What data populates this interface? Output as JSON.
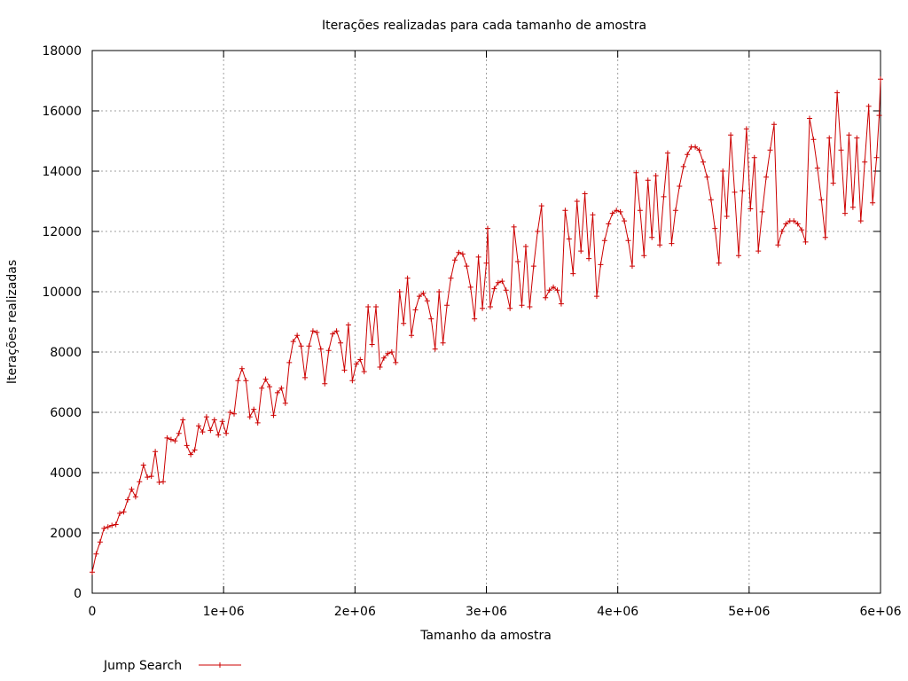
{
  "chart_data": {
    "type": "line",
    "title": "Iterações realizadas para cada tamanho de amostra",
    "xlabel": "Tamanho da amostra",
    "ylabel": "Iterações realizadas",
    "xlim": [
      0,
      6000000
    ],
    "ylim": [
      0,
      18000
    ],
    "xticks": [
      0,
      1000000,
      2000000,
      3000000,
      4000000,
      5000000,
      6000000
    ],
    "xtick_labels": [
      "0",
      "1e+06",
      "2e+06",
      "3e+06",
      "4e+06",
      "5e+06",
      "6e+06"
    ],
    "yticks": [
      0,
      2000,
      4000,
      6000,
      8000,
      10000,
      12000,
      14000,
      16000,
      18000
    ],
    "ytick_labels": [
      "0",
      "2000",
      "4000",
      "6000",
      "8000",
      "10000",
      "12000",
      "14000",
      "16000",
      "18000"
    ],
    "grid": true,
    "legend_position": "bottom-left",
    "series": [
      {
        "name": "Jump Search",
        "color": "#cc0000",
        "marker": "plus",
        "points": [
          [
            0,
            700
          ],
          [
            30000,
            1300
          ],
          [
            60000,
            1700
          ],
          [
            90000,
            2150
          ],
          [
            120000,
            2200
          ],
          [
            150000,
            2250
          ],
          [
            180000,
            2280
          ],
          [
            210000,
            2650
          ],
          [
            240000,
            2700
          ],
          [
            270000,
            3100
          ],
          [
            300000,
            3450
          ],
          [
            330000,
            3200
          ],
          [
            360000,
            3700
          ],
          [
            390000,
            4250
          ],
          [
            420000,
            3850
          ],
          [
            450000,
            3880
          ],
          [
            480000,
            4700
          ],
          [
            510000,
            3680
          ],
          [
            540000,
            3700
          ],
          [
            570000,
            5150
          ],
          [
            600000,
            5100
          ],
          [
            630000,
            5050
          ],
          [
            660000,
            5300
          ],
          [
            690000,
            5750
          ],
          [
            720000,
            4900
          ],
          [
            750000,
            4600
          ],
          [
            780000,
            4750
          ],
          [
            810000,
            5550
          ],
          [
            840000,
            5350
          ],
          [
            870000,
            5850
          ],
          [
            900000,
            5400
          ],
          [
            930000,
            5750
          ],
          [
            960000,
            5250
          ],
          [
            990000,
            5700
          ],
          [
            1020000,
            5300
          ],
          [
            1050000,
            6000
          ],
          [
            1080000,
            5950
          ],
          [
            1110000,
            7050
          ],
          [
            1140000,
            7450
          ],
          [
            1170000,
            7050
          ],
          [
            1200000,
            5850
          ],
          [
            1230000,
            6100
          ],
          [
            1260000,
            5650
          ],
          [
            1290000,
            6800
          ],
          [
            1320000,
            7100
          ],
          [
            1350000,
            6850
          ],
          [
            1380000,
            5900
          ],
          [
            1410000,
            6650
          ],
          [
            1440000,
            6800
          ],
          [
            1470000,
            6300
          ],
          [
            1500000,
            7650
          ],
          [
            1530000,
            8350
          ],
          [
            1560000,
            8550
          ],
          [
            1590000,
            8200
          ],
          [
            1620000,
            7150
          ],
          [
            1650000,
            8200
          ],
          [
            1680000,
            8700
          ],
          [
            1710000,
            8650
          ],
          [
            1740000,
            8100
          ],
          [
            1770000,
            6950
          ],
          [
            1800000,
            8050
          ],
          [
            1830000,
            8600
          ],
          [
            1860000,
            8700
          ],
          [
            1890000,
            8300
          ],
          [
            1920000,
            7400
          ],
          [
            1950000,
            8900
          ],
          [
            1980000,
            7050
          ],
          [
            2010000,
            7600
          ],
          [
            2040000,
            7750
          ],
          [
            2070000,
            7350
          ],
          [
            2100000,
            9500
          ],
          [
            2130000,
            8250
          ],
          [
            2160000,
            9500
          ],
          [
            2190000,
            7500
          ],
          [
            2220000,
            7800
          ],
          [
            2250000,
            7950
          ],
          [
            2280000,
            8000
          ],
          [
            2310000,
            7650
          ],
          [
            2340000,
            10000
          ],
          [
            2370000,
            8950
          ],
          [
            2400000,
            10450
          ],
          [
            2430000,
            8550
          ],
          [
            2460000,
            9400
          ],
          [
            2490000,
            9850
          ],
          [
            2520000,
            9950
          ],
          [
            2550000,
            9700
          ],
          [
            2580000,
            9100
          ],
          [
            2610000,
            8100
          ],
          [
            2640000,
            10000
          ],
          [
            2670000,
            8300
          ],
          [
            2700000,
            9550
          ],
          [
            2730000,
            10450
          ],
          [
            2760000,
            11050
          ],
          [
            2790000,
            11300
          ],
          [
            2820000,
            11250
          ],
          [
            2850000,
            10850
          ],
          [
            2880000,
            10150
          ],
          [
            2910000,
            9100
          ],
          [
            2940000,
            11150
          ],
          [
            2970000,
            9450
          ],
          [
            3000000,
            10950
          ],
          [
            3010000,
            12100
          ],
          [
            3030000,
            9500
          ],
          [
            3060000,
            10100
          ],
          [
            3090000,
            10300
          ],
          [
            3120000,
            10350
          ],
          [
            3150000,
            10050
          ],
          [
            3180000,
            9450
          ],
          [
            3210000,
            12150
          ],
          [
            3240000,
            11000
          ],
          [
            3270000,
            9550
          ],
          [
            3300000,
            11500
          ],
          [
            3330000,
            9500
          ],
          [
            3360000,
            10850
          ],
          [
            3390000,
            12000
          ],
          [
            3420000,
            12850
          ],
          [
            3450000,
            9800
          ],
          [
            3480000,
            10050
          ],
          [
            3510000,
            10150
          ],
          [
            3540000,
            10050
          ],
          [
            3570000,
            9600
          ],
          [
            3600000,
            12700
          ],
          [
            3630000,
            11750
          ],
          [
            3660000,
            10600
          ],
          [
            3690000,
            13000
          ],
          [
            3720000,
            11350
          ],
          [
            3750000,
            13250
          ],
          [
            3780000,
            11100
          ],
          [
            3810000,
            12550
          ],
          [
            3840000,
            9850
          ],
          [
            3870000,
            10900
          ],
          [
            3900000,
            11700
          ],
          [
            3930000,
            12250
          ],
          [
            3960000,
            12600
          ],
          [
            3990000,
            12700
          ],
          [
            4020000,
            12650
          ],
          [
            4050000,
            12350
          ],
          [
            4080000,
            11700
          ],
          [
            4110000,
            10850
          ],
          [
            4140000,
            13950
          ],
          [
            4170000,
            12700
          ],
          [
            4200000,
            11200
          ],
          [
            4230000,
            13700
          ],
          [
            4260000,
            11800
          ],
          [
            4290000,
            13850
          ],
          [
            4320000,
            11550
          ],
          [
            4350000,
            13150
          ],
          [
            4380000,
            14600
          ],
          [
            4410000,
            11600
          ],
          [
            4440000,
            12700
          ],
          [
            4470000,
            13500
          ],
          [
            4500000,
            14150
          ],
          [
            4530000,
            14550
          ],
          [
            4560000,
            14800
          ],
          [
            4590000,
            14800
          ],
          [
            4620000,
            14700
          ],
          [
            4650000,
            14300
          ],
          [
            4680000,
            13800
          ],
          [
            4710000,
            13050
          ],
          [
            4740000,
            12100
          ],
          [
            4770000,
            10950
          ],
          [
            4800000,
            14000
          ],
          [
            4830000,
            12500
          ],
          [
            4860000,
            15200
          ],
          [
            4890000,
            13300
          ],
          [
            4920000,
            11200
          ],
          [
            4950000,
            13350
          ],
          [
            4980000,
            15400
          ],
          [
            5010000,
            12750
          ],
          [
            5040000,
            14450
          ],
          [
            5070000,
            11350
          ],
          [
            5100000,
            12650
          ],
          [
            5130000,
            13800
          ],
          [
            5160000,
            14700
          ],
          [
            5190000,
            15550
          ],
          [
            5220000,
            11550
          ],
          [
            5250000,
            12000
          ],
          [
            5280000,
            12250
          ],
          [
            5310000,
            12350
          ],
          [
            5340000,
            12350
          ],
          [
            5370000,
            12250
          ],
          [
            5400000,
            12050
          ],
          [
            5430000,
            11650
          ],
          [
            5460000,
            15750
          ],
          [
            5490000,
            15050
          ],
          [
            5520000,
            14100
          ],
          [
            5550000,
            13050
          ],
          [
            5580000,
            11800
          ],
          [
            5610000,
            15100
          ],
          [
            5640000,
            13600
          ],
          [
            5670000,
            16600
          ],
          [
            5700000,
            14700
          ],
          [
            5730000,
            12600
          ],
          [
            5760000,
            15200
          ],
          [
            5790000,
            12800
          ],
          [
            5820000,
            15100
          ],
          [
            5850000,
            12350
          ],
          [
            5880000,
            14300
          ],
          [
            5910000,
            16150
          ],
          [
            5940000,
            12950
          ],
          [
            5970000,
            14450
          ],
          [
            5990000,
            15850
          ],
          [
            6000000,
            17050
          ]
        ]
      }
    ]
  }
}
